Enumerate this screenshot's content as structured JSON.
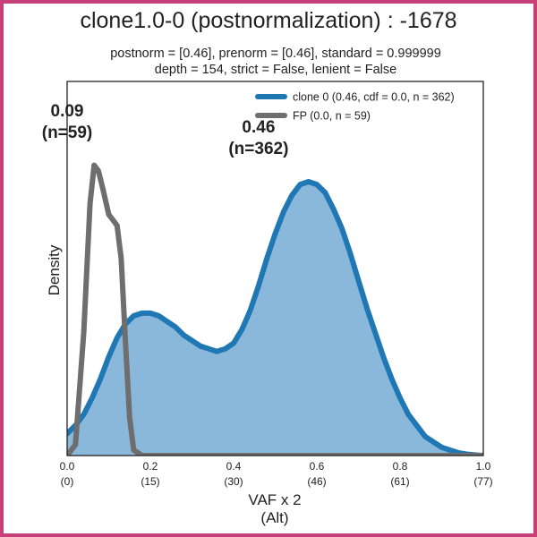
{
  "chart_data": {
    "type": "area",
    "title": "clone1.0-0 (postnormalization) : -1678",
    "subtitle_lines": [
      "postnorm = [0.46], prenorm = [0.46], standard = 0.999999",
      "depth = 154, strict = False, lenient = False"
    ],
    "xlabel": "VAF x 2",
    "xlabel2": "(Alt)",
    "ylabel": "Density",
    "xlim": [
      0.0,
      1.0
    ],
    "ylim": [
      0,
      1.0
    ],
    "x_ticks": [
      {
        "value": 0.0,
        "label": "0.0",
        "sublabel": "(0)"
      },
      {
        "value": 0.2,
        "label": "0.2",
        "sublabel": "(15)"
      },
      {
        "value": 0.4,
        "label": "0.4",
        "sublabel": "(30)"
      },
      {
        "value": 0.6,
        "label": "0.6",
        "sublabel": "(46)"
      },
      {
        "value": 0.8,
        "label": "0.8",
        "sublabel": "(61)"
      },
      {
        "value": 1.0,
        "label": "1.0",
        "sublabel": "(77)"
      }
    ],
    "grid": false,
    "legend_position": "top-right",
    "series": [
      {
        "name": "clone 0 (0.46, cdf = 0.0, n = 362)",
        "color": "#1f77b4",
        "fill_color": "#8ab8da",
        "filled": true,
        "x": [
          0.0,
          0.02,
          0.04,
          0.06,
          0.08,
          0.1,
          0.12,
          0.14,
          0.16,
          0.18,
          0.2,
          0.22,
          0.24,
          0.26,
          0.28,
          0.3,
          0.32,
          0.34,
          0.36,
          0.38,
          0.4,
          0.42,
          0.44,
          0.46,
          0.48,
          0.5,
          0.52,
          0.54,
          0.56,
          0.58,
          0.6,
          0.62,
          0.64,
          0.66,
          0.68,
          0.7,
          0.72,
          0.74,
          0.76,
          0.78,
          0.8,
          0.82,
          0.84,
          0.86,
          0.88,
          0.9,
          0.92,
          0.94,
          0.96,
          0.98,
          1.0
        ],
        "y": [
          0.08,
          0.11,
          0.15,
          0.21,
          0.28,
          0.36,
          0.43,
          0.48,
          0.51,
          0.52,
          0.52,
          0.51,
          0.49,
          0.47,
          0.44,
          0.42,
          0.4,
          0.39,
          0.38,
          0.39,
          0.41,
          0.46,
          0.53,
          0.62,
          0.72,
          0.81,
          0.89,
          0.95,
          0.99,
          1.0,
          0.99,
          0.96,
          0.9,
          0.83,
          0.74,
          0.64,
          0.54,
          0.45,
          0.36,
          0.28,
          0.21,
          0.15,
          0.11,
          0.07,
          0.05,
          0.03,
          0.02,
          0.01,
          0.005,
          0.002,
          0.0
        ]
      },
      {
        "name": "FP (0.0, n = 59)",
        "color": "#6e6e6e",
        "filled": false,
        "x": [
          0.0,
          0.02,
          0.04,
          0.055,
          0.065,
          0.075,
          0.085,
          0.1,
          0.11,
          0.12,
          0.13,
          0.14,
          0.15,
          0.16,
          0.18,
          0.2,
          0.3,
          0.5,
          0.7,
          1.0
        ],
        "y": [
          0.0,
          0.04,
          0.45,
          0.92,
          1.06,
          1.04,
          0.98,
          0.88,
          0.86,
          0.84,
          0.72,
          0.42,
          0.14,
          0.02,
          0.0,
          0.0,
          0.0,
          0.0,
          0.0,
          0.0
        ]
      }
    ],
    "annotations": [
      {
        "x": 0.0,
        "y": 1.0,
        "line1": "0.09",
        "line2": "(n=59)"
      },
      {
        "x": 0.46,
        "y": 1.0,
        "line1": "0.46",
        "line2": "(n=362)"
      }
    ]
  }
}
